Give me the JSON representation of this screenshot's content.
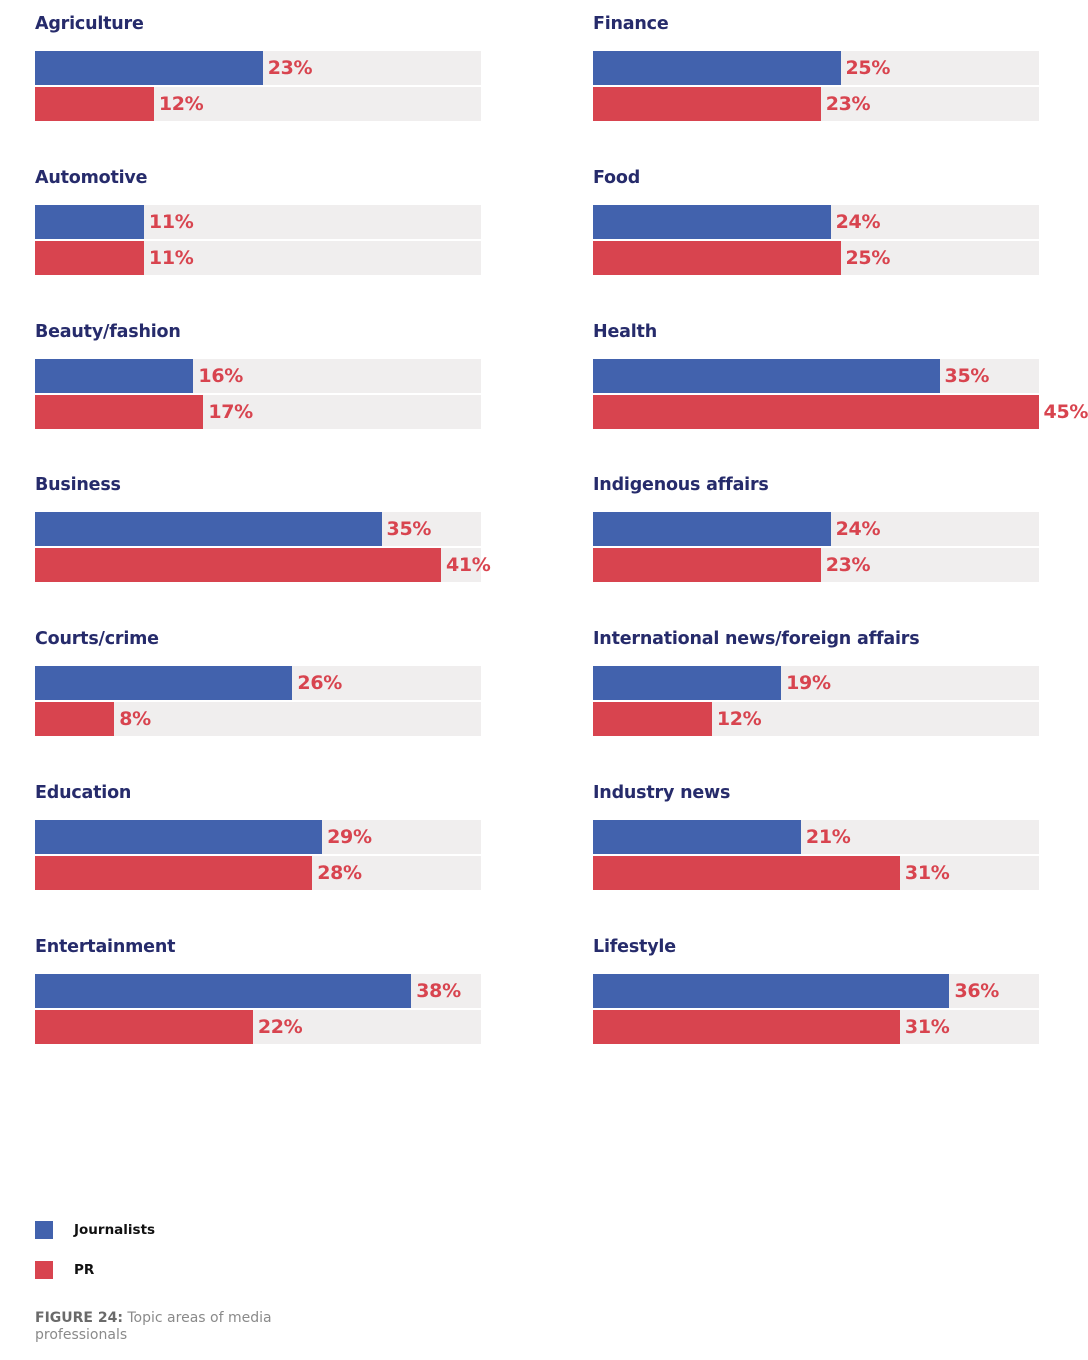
{
  "chart_data": {
    "type": "bar",
    "orientation": "horizontal",
    "value_suffix": "%",
    "xlim": [
      0,
      100
    ],
    "series_names": [
      "Journalists",
      "PR"
    ],
    "colors": {
      "journalists": "#4262ad",
      "pr": "#d8444f",
      "track": "#f0eeee",
      "title": "#262b6b"
    },
    "panels": [
      {
        "category": "Agriculture",
        "journalists": 23,
        "pr": 12
      },
      {
        "category": "Automotive",
        "journalists": 11,
        "pr": 11
      },
      {
        "category": "Beauty/fashion",
        "journalists": 16,
        "pr": 17
      },
      {
        "category": "Business",
        "journalists": 35,
        "pr": 41
      },
      {
        "category": "Courts/crime",
        "journalists": 26,
        "pr": 8
      },
      {
        "category": "Education",
        "journalists": 29,
        "pr": 28
      },
      {
        "category": "Entertainment",
        "journalists": 38,
        "pr": 22
      },
      {
        "category": "Finance",
        "journalists": 25,
        "pr": 23
      },
      {
        "category": "Food",
        "journalists": 24,
        "pr": 25
      },
      {
        "category": "Health",
        "journalists": 35,
        "pr": 45
      },
      {
        "category": "Indigenous affairs",
        "journalists": 24,
        "pr": 23
      },
      {
        "category": "International news/foreign affairs",
        "journalists": 19,
        "pr": 12
      },
      {
        "category": "Industry news",
        "journalists": 21,
        "pr": 31
      },
      {
        "category": "Lifestyle",
        "journalists": 36,
        "pr": 31
      }
    ]
  },
  "legend": {
    "items": [
      {
        "label": "Journalists",
        "color": "#4262ad"
      },
      {
        "label": "PR",
        "color": "#d8444f"
      }
    ]
  },
  "caption": {
    "figure_label": "FIGURE 24:",
    "text": " Topic areas of media professionals"
  }
}
